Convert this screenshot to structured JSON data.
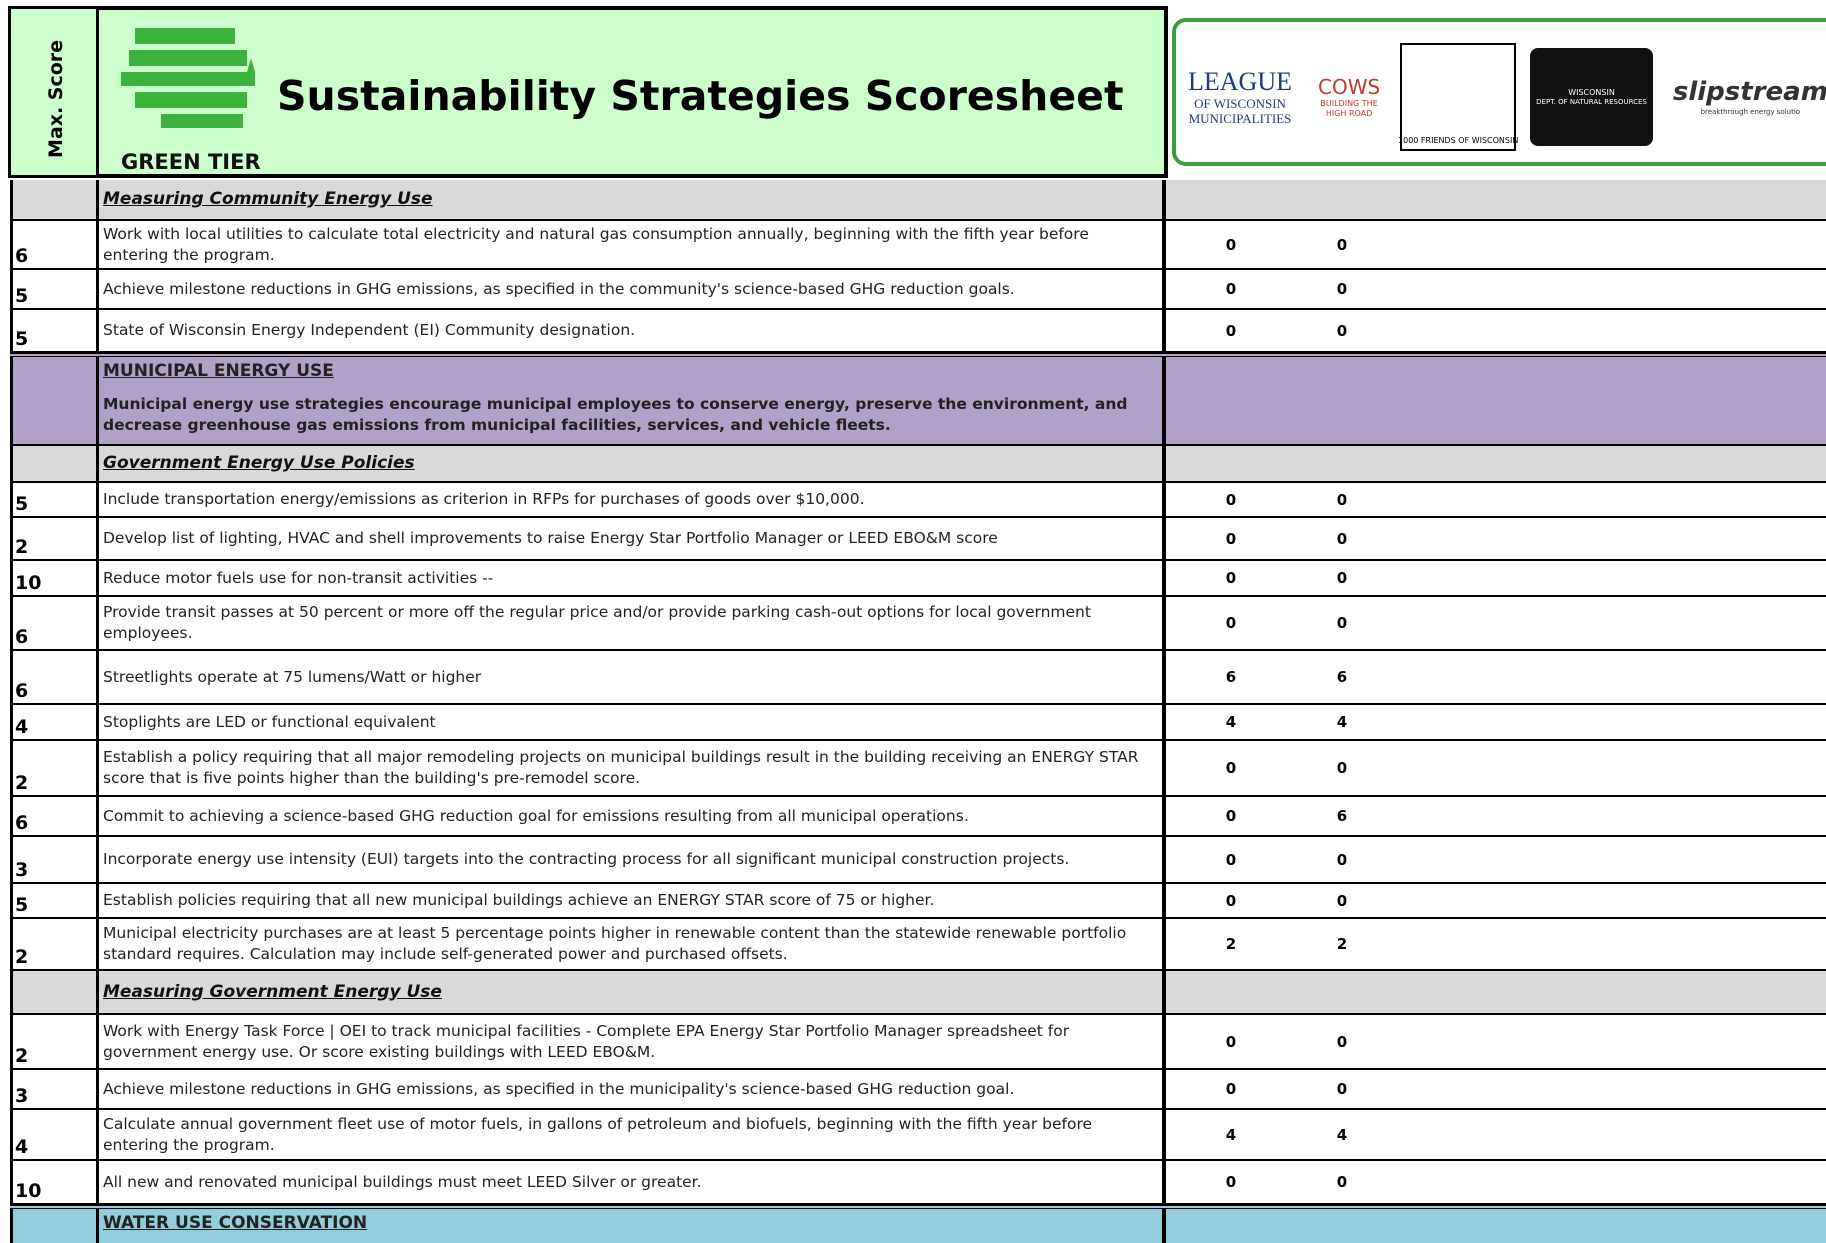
{
  "header": {
    "max_score_label": "Max. Score",
    "logo_text": "GREEN TIER",
    "title": "Sustainability Strategies Scoresheet",
    "partners": [
      {
        "lines": [
          "LEAGUE",
          "OF WISCONSIN",
          "MUNICIPALITIES"
        ]
      },
      {
        "lines": [
          "COWS",
          "BUILDING THE",
          "HIGH ROAD"
        ]
      },
      {
        "lines": [
          "1000 FRIENDS OF WISCONSIN"
        ]
      },
      {
        "lines": [
          "WISCONSIN",
          "DEPT. OF NATURAL RESOURCES"
        ]
      },
      {
        "lines": [
          "slipstream",
          "breakthrough energy solutio"
        ]
      }
    ]
  },
  "rows": [
    {
      "heading": "Measuring Community Energy Use"
    },
    {
      "max_score": 6,
      "strategy": "Work with local utilities to calculate total electricity and natural gas consumption annually, beginning with the fifth year before entering the program.",
      "scores": [
        0,
        0
      ]
    },
    {
      "max_score": 5,
      "strategy": "Achieve milestone reductions in GHG emissions, as specified in the community's science-based GHG reduction goals.",
      "scores": [
        0,
        0
      ]
    },
    {
      "max_score": 5,
      "strategy": "State of Wisconsin Energy Independent (EI) Community designation.",
      "scores": [
        0,
        0
      ]
    },
    {
      "category": "MUNICIPAL ENERGY USE",
      "description": "Municipal energy use strategies encourage municipal employees to conserve energy, preserve the environment, and decrease greenhouse gas emissions from municipal facilities, services, and vehicle fleets."
    },
    {
      "heading": "Government Energy Use Policies"
    },
    {
      "max_score": 5,
      "strategy": "Include transportation energy/emissions as criterion in RFPs for purchases of goods over $10,000.",
      "scores": [
        0,
        0
      ]
    },
    {
      "max_score": 2,
      "strategy": "Develop list of lighting, HVAC and shell improvements to raise Energy Star Portfolio Manager or LEED EBO&M score",
      "scores": [
        0,
        0
      ]
    },
    {
      "max_score": 10,
      "strategy": "Reduce motor fuels use for non-transit activities --",
      "scores": [
        0,
        0
      ]
    },
    {
      "max_score": 6,
      "strategy": "Provide transit passes at 50 percent or more off the regular price and/or provide parking cash-out options for local government employees.",
      "scores": [
        0,
        0
      ]
    },
    {
      "max_score": 6,
      "strategy": "Streetlights operate at 75 lumens/Watt or higher",
      "scores": [
        6,
        6
      ]
    },
    {
      "max_score": 4,
      "strategy": "Stoplights are LED or functional equivalent",
      "scores": [
        4,
        4
      ]
    },
    {
      "max_score": 2,
      "strategy": "Establish a policy requiring that all major remodeling projects on municipal buildings result in the building receiving an ENERGY STAR score that is five points higher than the building's pre-remodel score.",
      "scores": [
        0,
        0
      ]
    },
    {
      "max_score": 6,
      "strategy": "Commit to achieving a science-based GHG reduction goal for emissions resulting from all municipal operations.",
      "scores": [
        0,
        6
      ]
    },
    {
      "max_score": 3,
      "strategy": "Incorporate energy use intensity (EUI) targets into the contracting process for all significant municipal construction projects.",
      "scores": [
        0,
        0
      ]
    },
    {
      "max_score": 5,
      "strategy": "Establish policies requiring that all new municipal buildings achieve an ENERGY STAR score of 75 or higher.",
      "scores": [
        0,
        0
      ]
    },
    {
      "max_score": 2,
      "strategy": "Municipal electricity purchases are at least 5 percentage points higher in renewable content than the statewide renewable portfolio standard requires. Calculation may include self-generated power and purchased offsets.",
      "scores": [
        2,
        2
      ]
    },
    {
      "heading": "Measuring Government Energy Use"
    },
    {
      "max_score": 2,
      "strategy": "Work with Energy Task Force | OEI to track municipal facilities - Complete EPA Energy Star Portfolio Manager spreadsheet for government energy use.  Or score existing buildings with LEED EBO&M.",
      "scores": [
        0,
        0
      ]
    },
    {
      "max_score": 3,
      "strategy": "Achieve milestone reductions in GHG emissions, as specified in the municipality's science-based GHG reduction goal.",
      "scores": [
        0,
        0
      ]
    },
    {
      "max_score": 4,
      "strategy": "Calculate annual government fleet use of motor fuels, in gallons of petroleum and biofuels, beginning with the fifth year before entering the program.",
      "scores": [
        4,
        4
      ]
    },
    {
      "max_score": 10,
      "strategy": "All new and renovated municipal buildings must meet LEED Silver or greater.",
      "scores": [
        0,
        0
      ]
    },
    {
      "category": "WATER USE CONSERVATION"
    }
  ]
}
